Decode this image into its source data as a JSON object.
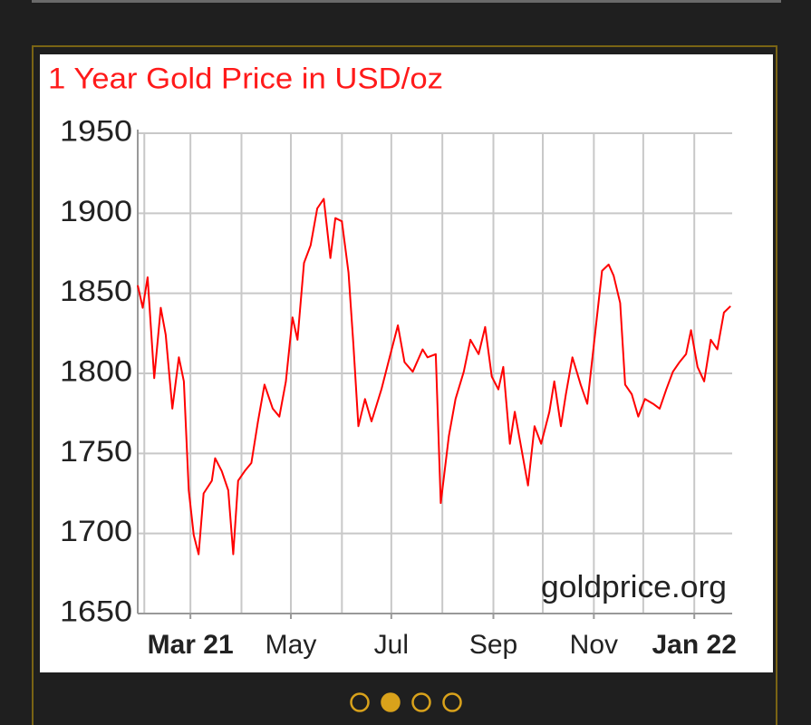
{
  "chart_data": {
    "type": "line",
    "title": "1 Year Gold Price in USD/oz",
    "watermark": "goldprice.org",
    "color": "#ff0000",
    "grid": true,
    "x": [
      27,
      30,
      33,
      37,
      41,
      44,
      48,
      52,
      55,
      58,
      61,
      64,
      67,
      72,
      74,
      78,
      82,
      85,
      88,
      92,
      96,
      100,
      104,
      109,
      113,
      117,
      121,
      124,
      128,
      132,
      136,
      140,
      144,
      147,
      151,
      155,
      158,
      161,
      165,
      169,
      175,
      180,
      185,
      189,
      194,
      200,
      203,
      208,
      211,
      216,
      220,
      225,
      229,
      234,
      238,
      242,
      246,
      249,
      253,
      256,
      260,
      264,
      268,
      272,
      277,
      280,
      284,
      287,
      291,
      296,
      300,
      304,
      309,
      313,
      316,
      320,
      323,
      327,
      331,
      335,
      340,
      344,
      348,
      352,
      356,
      360,
      363,
      367,
      371,
      375,
      379,
      383,
      387
    ],
    "values": [
      1855,
      1841,
      1860,
      1797,
      1841,
      1824,
      1778,
      1810,
      1795,
      1727,
      1699,
      1687,
      1725,
      1733,
      1747,
      1739,
      1727,
      1687,
      1733,
      1739,
      1744,
      1770,
      1793,
      1778,
      1773,
      1795,
      1835,
      1821,
      1869,
      1880,
      1903,
      1909,
      1872,
      1897,
      1895,
      1863,
      1818,
      1767,
      1784,
      1770,
      1790,
      1810,
      1830,
      1807,
      1801,
      1815,
      1810,
      1812,
      1719,
      1761,
      1784,
      1801,
      1821,
      1812,
      1829,
      1798,
      1790,
      1804,
      1756,
      1776,
      1753,
      1730,
      1767,
      1756,
      1776,
      1795,
      1767,
      1787,
      1810,
      1793,
      1781,
      1818,
      1864,
      1868,
      1861,
      1844,
      1793,
      1787,
      1773,
      1784,
      1781,
      1778,
      1790,
      1801,
      1807,
      1812,
      1827,
      1804,
      1795,
      1821,
      1815,
      1838,
      1842
    ],
    "xlim": [
      27,
      388
    ],
    "xticks": [
      {
        "value": 59,
        "label": "Mar 21"
      },
      {
        "value": 120,
        "label": "May"
      },
      {
        "value": 181,
        "label": "Jul"
      },
      {
        "value": 243,
        "label": "Sep"
      },
      {
        "value": 304,
        "label": "Nov"
      },
      {
        "value": 365,
        "label": "Jan 22"
      }
    ],
    "xgrid": [
      31,
      59,
      90,
      120,
      151,
      181,
      212,
      243,
      273,
      304,
      334,
      365
    ],
    "ylim": [
      1650,
      1950
    ],
    "yticks": [
      1650,
      1700,
      1750,
      1800,
      1850,
      1900,
      1950
    ]
  }
}
